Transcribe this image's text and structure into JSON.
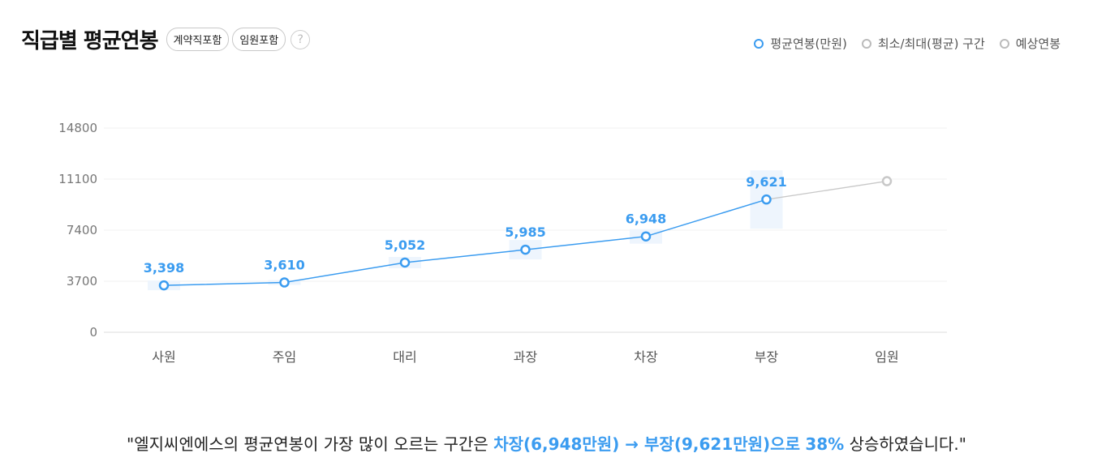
{
  "header": {
    "title": "직급별 평균연봉",
    "chips": [
      "계약직포함",
      "임원포함"
    ],
    "help_label": "?"
  },
  "legend": [
    {
      "label": "평균연봉(만원)",
      "color": "#3b9cf0"
    },
    {
      "label": "최소/최대(평균) 구간",
      "color": "#bbbbbb"
    },
    {
      "label": "예상연봉",
      "color": "#bbbbbb"
    }
  ],
  "chart_data": {
    "type": "line",
    "categories": [
      "사원",
      "주임",
      "대리",
      "과장",
      "차장",
      "부장",
      "임원"
    ],
    "series": [
      {
        "name": "평균연봉(만원)",
        "values": [
          3398,
          3610,
          5052,
          5985,
          6948,
          9621,
          null
        ],
        "labels": [
          "3,398",
          "3,610",
          "5,052",
          "5,985",
          "6,948",
          "9,621",
          ""
        ],
        "color": "#3b9cf0"
      },
      {
        "name": "예상연봉",
        "values": [
          null,
          null,
          null,
          null,
          null,
          9621,
          10950
        ],
        "color": "#c8c8c8"
      }
    ],
    "yticks": [
      0,
      3700,
      7400,
      11100,
      14800
    ],
    "ylim": [
      0,
      14800
    ],
    "grid": true,
    "legend": "top-right"
  },
  "summary": {
    "prefix": "\"엘지씨엔에스의 평균연봉이 가장 많이 오르는 구간은 ",
    "highlight1": "차장(6,948만원) → 부장(9,621만원)으로",
    "mid": " ",
    "highlight2": "38%",
    "suffix": " 상승하였습니다.\""
  }
}
